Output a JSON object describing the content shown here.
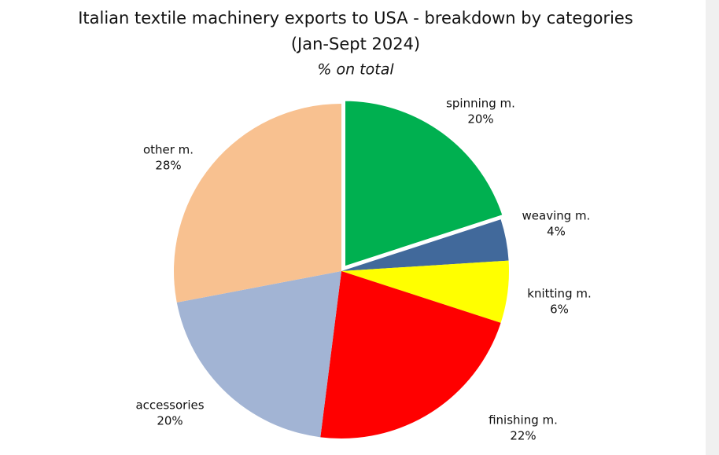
{
  "chart_data": {
    "type": "pie",
    "title": [
      "Italian textile machinery exports to USA - breakdown by categories",
      "(Jan-Sept 2024)"
    ],
    "subtitle": "% on total",
    "categories": [
      "spinning m.",
      "weaving m.",
      "knitting m.",
      "finishing m.",
      "accessories",
      "other m."
    ],
    "values": [
      20,
      4,
      6,
      22,
      20,
      28
    ],
    "value_labels": [
      "20%",
      "4%",
      "6%",
      "22%",
      "20%",
      "28%"
    ],
    "colors": [
      "#00b050",
      "#41699b",
      "#ffff00",
      "#ff0000",
      "#a2b4d4",
      "#f8c190"
    ]
  }
}
